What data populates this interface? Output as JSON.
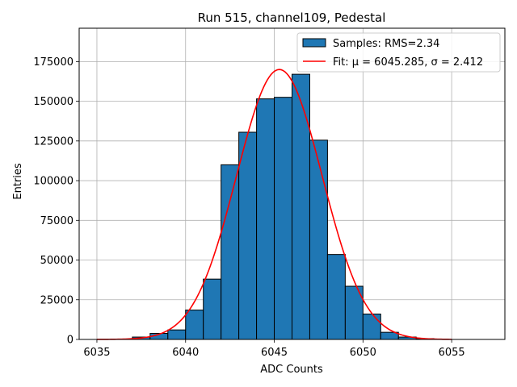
{
  "chart_data": {
    "type": "bar",
    "title": "Run 515, channel109, Pedestal",
    "xlabel": "ADC Counts",
    "ylabel": "Entries",
    "xlim": [
      6034,
      6058
    ],
    "ylim": [
      0,
      196000
    ],
    "xticks": [
      6035,
      6040,
      6045,
      6050,
      6055
    ],
    "yticks": [
      0,
      25000,
      50000,
      75000,
      100000,
      125000,
      150000,
      175000
    ],
    "grid": true,
    "legend_position": "top-right",
    "bin_width": 1,
    "bins": [
      {
        "x": 6037,
        "value": 1500
      },
      {
        "x": 6038,
        "value": 3800
      },
      {
        "x": 6039,
        "value": 6000
      },
      {
        "x": 6040,
        "value": 18500
      },
      {
        "x": 6041,
        "value": 38000
      },
      {
        "x": 6042,
        "value": 110000
      },
      {
        "x": 6043,
        "value": 130500
      },
      {
        "x": 6044,
        "value": 151500
      },
      {
        "x": 6045,
        "value": 152500
      },
      {
        "x": 6046,
        "value": 167000
      },
      {
        "x": 6047,
        "value": 125500
      },
      {
        "x": 6048,
        "value": 53500
      },
      {
        "x": 6049,
        "value": 33500
      },
      {
        "x": 6050,
        "value": 16000
      },
      {
        "x": 6051,
        "value": 4500
      },
      {
        "x": 6052,
        "value": 1500
      },
      {
        "x": 6053,
        "value": 500
      }
    ],
    "fit": {
      "mu": 6045.285,
      "sigma": 2.412,
      "amplitude": 170000,
      "x_range": [
        6035,
        6055
      ]
    },
    "series": [
      {
        "name": "Samples: RMS=2.34",
        "kind": "histogram",
        "color": "#1f77b4",
        "edge_color": "#000000"
      },
      {
        "name": "Fit: μ = 6045.285, σ = 2.412",
        "kind": "line",
        "color": "#ff0000"
      }
    ]
  }
}
